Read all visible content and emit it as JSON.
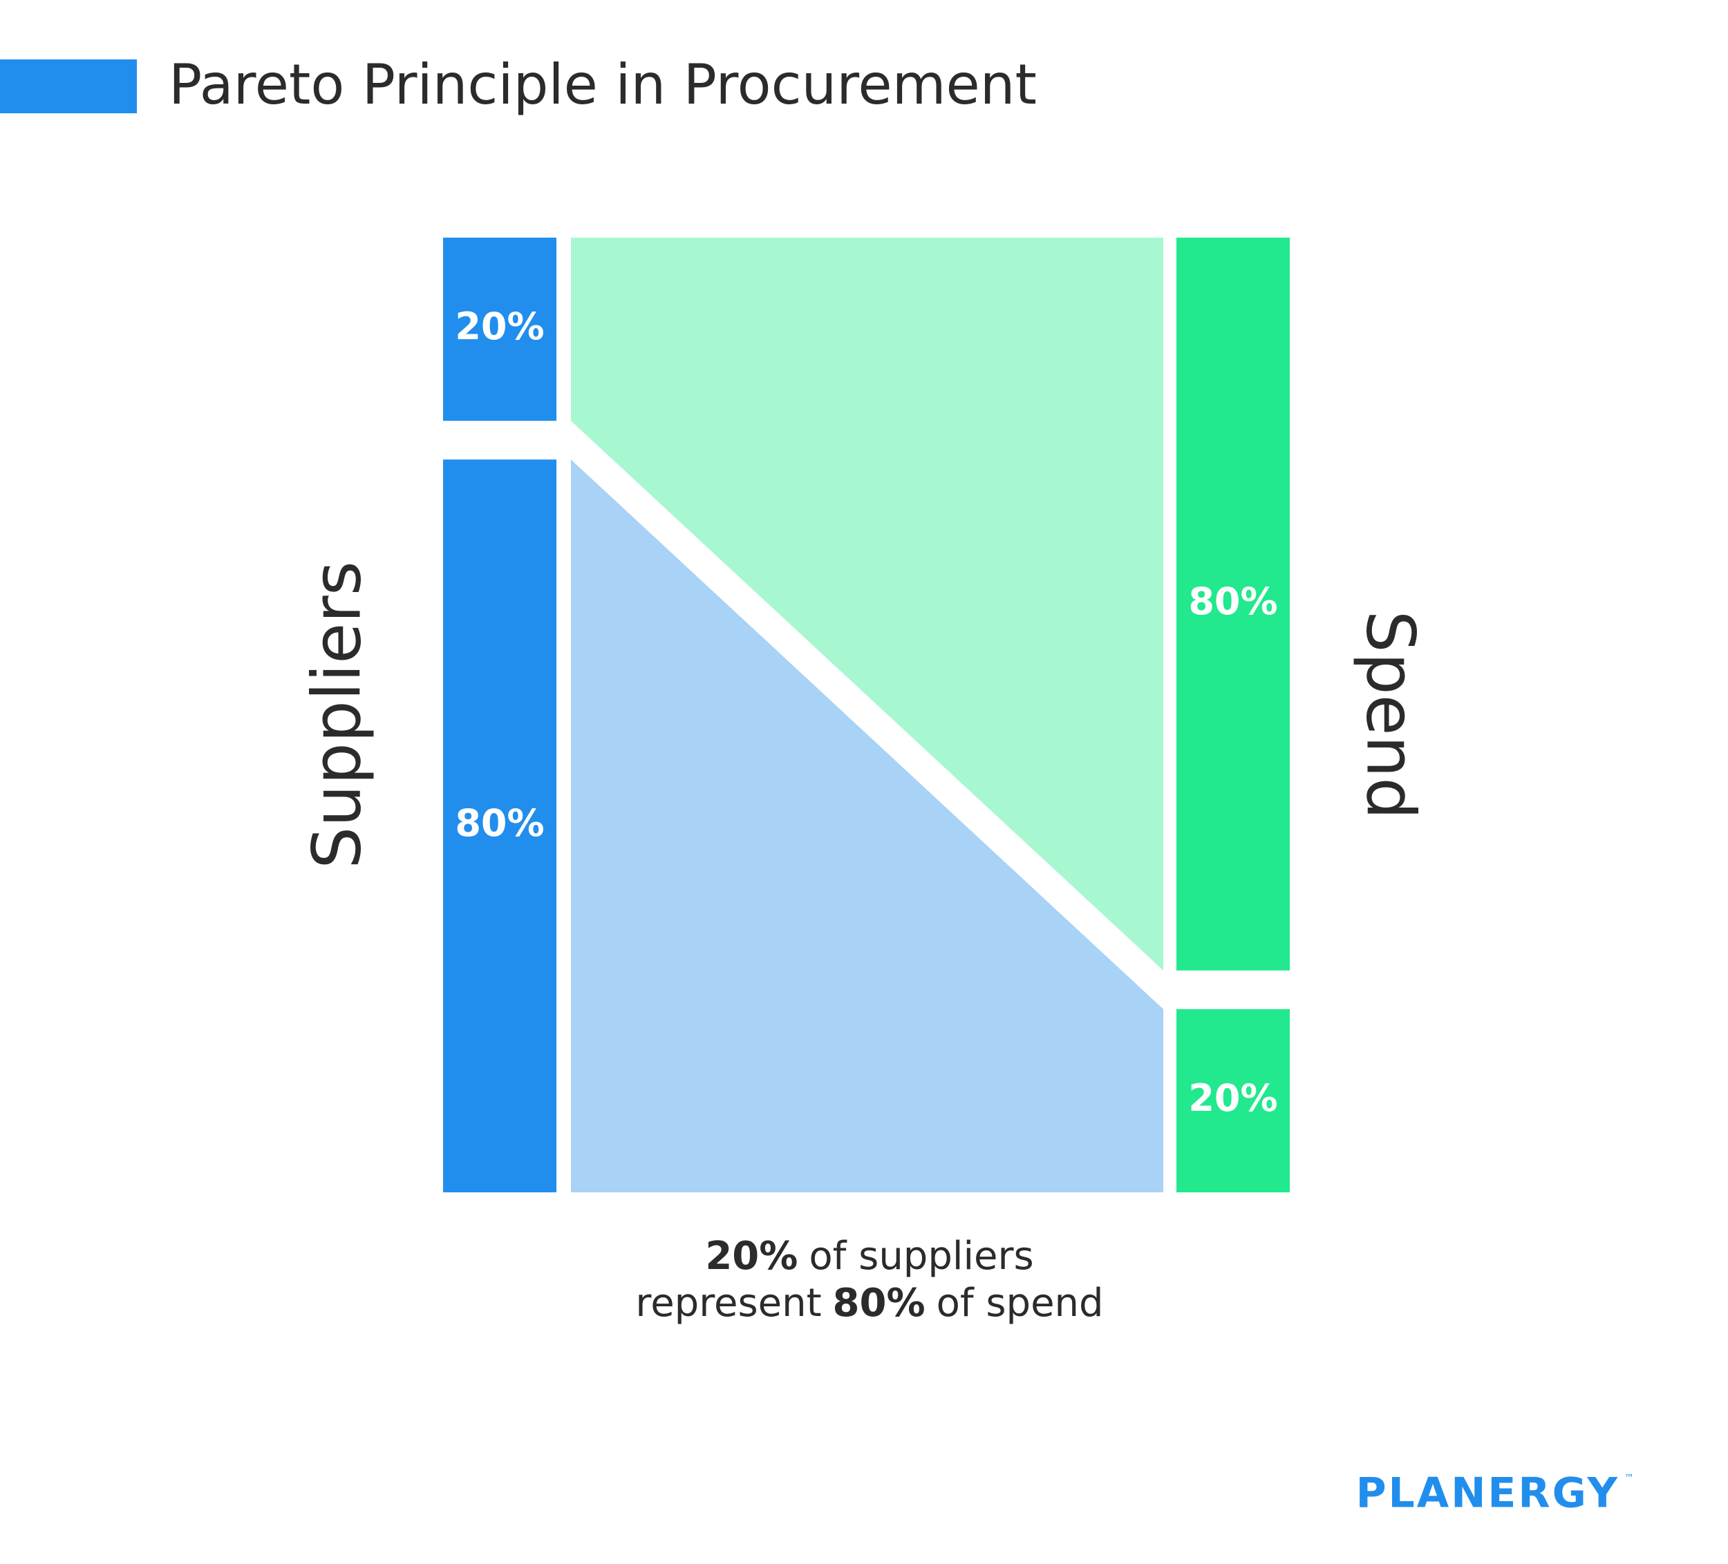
{
  "chart_data": {
    "type": "sankey",
    "title": "Pareto Principle in Procurement",
    "title_color": "#218eed",
    "nodes": [
      {
        "name": "Suppliers",
        "color": "#218eed",
        "values": [
          20,
          80
        ],
        "value_labels": [
          "20%",
          "80%"
        ]
      },
      {
        "name": "Spend",
        "color": "#22e88e",
        "values": [
          80,
          20
        ],
        "value_labels": [
          "80%",
          "20%"
        ]
      }
    ],
    "flow_colors": [
      "#a7f7d1",
      "#a8d2f6"
    ],
    "annotation": [
      [
        {
          "text": "20%",
          "bold": true
        },
        {
          "text": "of suppliers",
          "bold": false
        }
      ],
      [
        {
          "text": "represent",
          "bold": false
        },
        {
          "text": "80%",
          "bold": true
        },
        {
          "text": "of spend",
          "bold": false
        }
      ]
    ],
    "brand": "PLANERGY",
    "trademark": "™"
  }
}
